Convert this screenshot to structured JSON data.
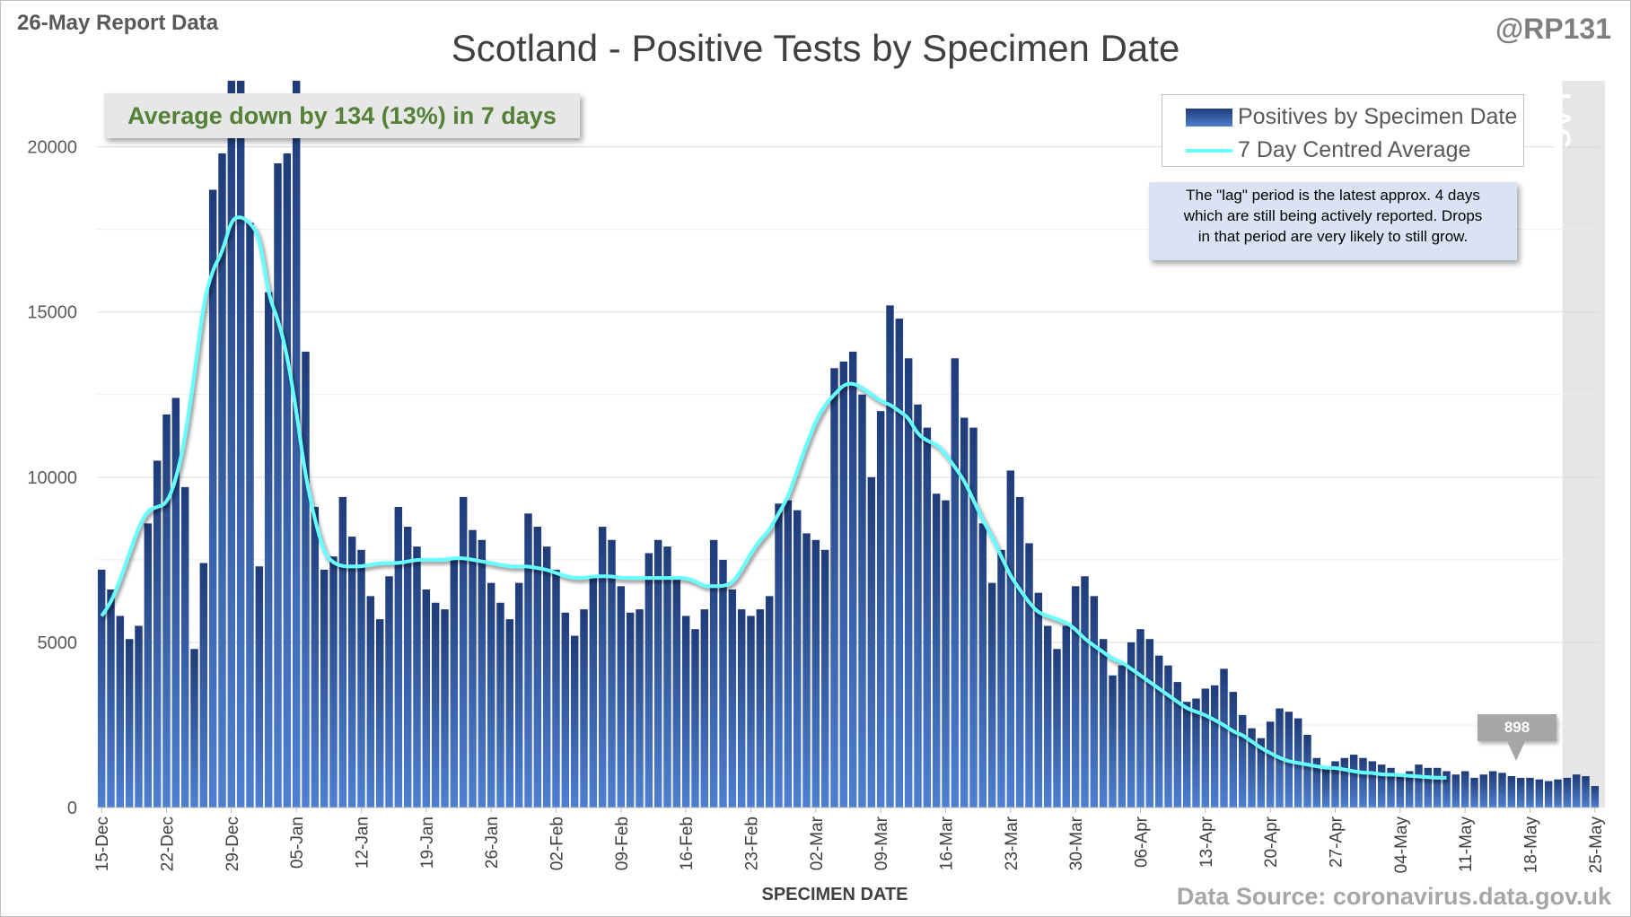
{
  "header": {
    "report_date": "26-May Report Data",
    "author": "@RP131",
    "source": "Data Source: coronavirus.data.gov.uk"
  },
  "callout": {
    "text": "Average down by 134 (13%) in 7 days"
  },
  "lag_note": {
    "lines": [
      "The \"lag\" period is the latest approx. 4 days",
      "which are still being actively reported. Drops",
      "in that period are very likely to still grow."
    ]
  },
  "lag_label": "LAG",
  "latest_label": "898",
  "colors": {
    "bar_dark": "#1f3c79",
    "bar_light": "#4e7fd1",
    "average_line": "#66ffff",
    "gridline": "#d9d9d9",
    "lag_shade": "#e6e6e6",
    "callout_text": "#538135"
  },
  "chart_data": {
    "type": "bar",
    "title": "Scotland - Positive Tests by Specimen Date",
    "xlabel": "SPECIMEN DATE",
    "ylabel": "",
    "ylim": [
      0,
      22000
    ],
    "yticks": [
      0,
      5000,
      10000,
      15000,
      20000
    ],
    "grid": true,
    "legend_position": "top-right",
    "x_start": "15-Dec",
    "x_end": "25-May",
    "xtick_labels": [
      "15-Dec",
      "22-Dec",
      "29-Dec",
      "05-Jan",
      "12-Jan",
      "19-Jan",
      "26-Jan",
      "02-Feb",
      "09-Feb",
      "16-Feb",
      "23-Feb",
      "02-Mar",
      "09-Mar",
      "16-Mar",
      "23-Mar",
      "30-Mar",
      "06-Apr",
      "13-Apr",
      "20-Apr",
      "27-Apr",
      "04-May",
      "11-May",
      "18-May",
      "25-May"
    ],
    "lag_days": 4,
    "series": [
      {
        "name": "Positives by Specimen Date",
        "type": "bar",
        "values": [
          7200,
          6600,
          5800,
          5100,
          5500,
          8600,
          10500,
          11900,
          12400,
          9700,
          4800,
          7400,
          18700,
          19800,
          22500,
          22500,
          17700,
          7300,
          15600,
          19500,
          19800,
          22500,
          13800,
          9100,
          7200,
          7600,
          9400,
          8200,
          7800,
          6400,
          5700,
          7000,
          9100,
          8500,
          7900,
          6600,
          6200,
          6000,
          7500,
          9400,
          8400,
          8100,
          6800,
          6200,
          5700,
          6800,
          8900,
          8500,
          7900,
          7200,
          5900,
          5200,
          6000,
          7000,
          8500,
          8100,
          6700,
          5900,
          6000,
          7700,
          8100,
          7900,
          6900,
          5800,
          5400,
          6000,
          8100,
          7500,
          6600,
          6000,
          5800,
          6000,
          6400,
          9200,
          9300,
          9000,
          8300,
          8100,
          7800,
          13300,
          13500,
          13800,
          12500,
          10000,
          12000,
          15200,
          14800,
          13600,
          12200,
          11500,
          9500,
          9300,
          13600,
          11800,
          11500,
          8600,
          6800,
          7800,
          10200,
          9400,
          8000,
          6500,
          5500,
          4800,
          5500,
          6700,
          7000,
          6400,
          5100,
          4000,
          4300,
          5000,
          5400,
          5100,
          4600,
          4300,
          3800,
          3200,
          3300,
          3600,
          3700,
          4200,
          3500,
          2800,
          2400,
          2100,
          2600,
          3000,
          2900,
          2700,
          2200,
          1500,
          1200,
          1400,
          1500,
          1600,
          1500,
          1400,
          1300,
          1200,
          1000,
          1100,
          1300,
          1200,
          1200,
          1100,
          1000,
          1100,
          900,
          1000,
          1100,
          1050,
          950,
          898,
          900,
          850,
          800,
          850,
          900,
          1000,
          950,
          650
        ]
      },
      {
        "name": "7 Day Centred Average",
        "type": "line",
        "values": [
          5800,
          6200,
          6900,
          7700,
          8500,
          9000,
          9100,
          9200,
          9900,
          11200,
          13100,
          15300,
          16300,
          16800,
          17800,
          17900,
          17700,
          17300,
          15500,
          14800,
          13700,
          12000,
          10000,
          8700,
          7700,
          7400,
          7300,
          7300,
          7300,
          7350,
          7400,
          7400,
          7400,
          7450,
          7500,
          7500,
          7500,
          7500,
          7550,
          7550,
          7500,
          7450,
          7400,
          7350,
          7300,
          7300,
          7300,
          7250,
          7200,
          7100,
          7000,
          6950,
          6950,
          7000,
          7000,
          7000,
          6950,
          6950,
          6950,
          6950,
          6950,
          6950,
          6950,
          6950,
          6850,
          6700,
          6700,
          6700,
          6800,
          7200,
          7700,
          8100,
          8400,
          8900,
          9400,
          10200,
          11000,
          11700,
          12200,
          12500,
          12800,
          12850,
          12700,
          12500,
          12300,
          12200,
          12000,
          11800,
          11300,
          11100,
          11000,
          10700,
          10300,
          9900,
          9300,
          8700,
          8200,
          7600,
          7000,
          6600,
          6200,
          5900,
          5800,
          5700,
          5600,
          5400,
          5100,
          4900,
          4700,
          4500,
          4400,
          4200,
          4000,
          3800,
          3600,
          3400,
          3200,
          3000,
          2900,
          2800,
          2650,
          2500,
          2300,
          2200,
          2000,
          1800,
          1650,
          1500,
          1400,
          1350,
          1300,
          1250,
          1200,
          1200,
          1150,
          1100,
          1050,
          1050,
          1000,
          1000,
          980,
          960,
          940,
          920,
          900,
          898
        ]
      }
    ]
  }
}
